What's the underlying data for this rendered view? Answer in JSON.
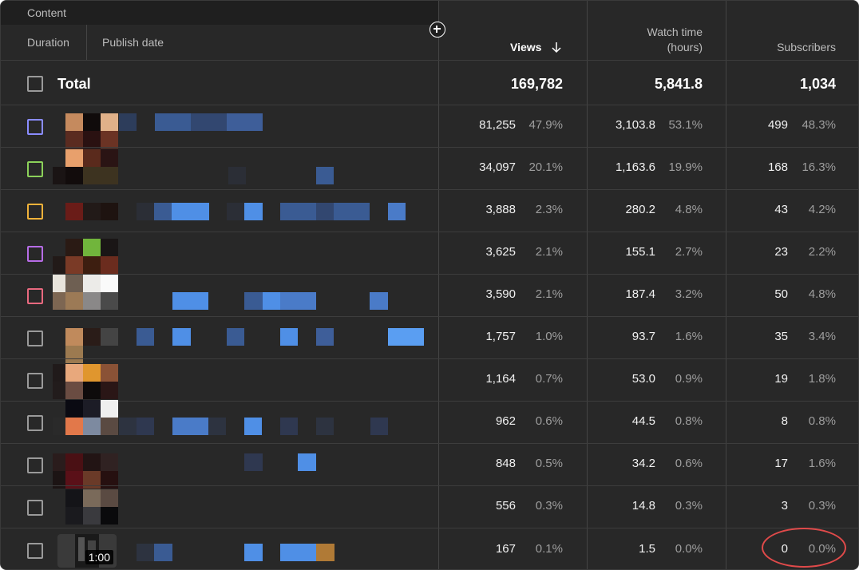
{
  "header": {
    "content_label": "Content",
    "duration_label": "Duration",
    "publish_date_label": "Publish date",
    "views_label": "Views",
    "watch_time_label_1": "Watch time",
    "watch_time_label_2": "(hours)",
    "subscribers_label": "Subscribers",
    "add_icon": "add-circle-icon",
    "sort_icon": "arrow-down-icon"
  },
  "total": {
    "label": "Total",
    "views": "169,782",
    "watch_time": "5,841.8",
    "subscribers": "1,034"
  },
  "rows": [
    {
      "checkbox_color": "#8a8cff",
      "views": "81,255",
      "views_pct": "47.9%",
      "watch": "3,103.8",
      "watch_pct": "53.1%",
      "subs": "499",
      "subs_pct": "48.3%"
    },
    {
      "checkbox_color": "#8bd15a",
      "views": "34,097",
      "views_pct": "20.1%",
      "watch": "1,163.6",
      "watch_pct": "19.9%",
      "subs": "168",
      "subs_pct": "16.3%"
    },
    {
      "checkbox_color": "#f0b23a",
      "views": "3,888",
      "views_pct": "2.3%",
      "watch": "280.2",
      "watch_pct": "4.8%",
      "subs": "43",
      "subs_pct": "4.2%"
    },
    {
      "checkbox_color": "#b66ce6",
      "views": "3,625",
      "views_pct": "2.1%",
      "watch": "155.1",
      "watch_pct": "2.7%",
      "subs": "23",
      "subs_pct": "2.2%"
    },
    {
      "checkbox_color": "#e8697f",
      "views": "3,590",
      "views_pct": "2.1%",
      "watch": "187.4",
      "watch_pct": "3.2%",
      "subs": "50",
      "subs_pct": "4.8%"
    },
    {
      "checkbox_color": "#9a9a9a",
      "views": "1,757",
      "views_pct": "1.0%",
      "watch": "93.7",
      "watch_pct": "1.6%",
      "subs": "35",
      "subs_pct": "3.4%"
    },
    {
      "checkbox_color": "#9a9a9a",
      "views": "1,164",
      "views_pct": "0.7%",
      "watch": "53.0",
      "watch_pct": "0.9%",
      "subs": "19",
      "subs_pct": "1.8%"
    },
    {
      "checkbox_color": "#9a9a9a",
      "views": "962",
      "views_pct": "0.6%",
      "watch": "44.5",
      "watch_pct": "0.8%",
      "subs": "8",
      "subs_pct": "0.8%"
    },
    {
      "checkbox_color": "#9a9a9a",
      "views": "848",
      "views_pct": "0.5%",
      "watch": "34.2",
      "watch_pct": "0.6%",
      "subs": "17",
      "subs_pct": "1.6%"
    },
    {
      "checkbox_color": "#9a9a9a",
      "views": "556",
      "views_pct": "0.3%",
      "watch": "14.8",
      "watch_pct": "0.3%",
      "subs": "3",
      "subs_pct": "0.3%"
    },
    {
      "checkbox_color": "#9a9a9a",
      "views": "167",
      "views_pct": "0.1%",
      "watch": "1.5",
      "watch_pct": "0.0%",
      "subs": "0",
      "subs_pct": "0.0%"
    }
  ],
  "last_row_thumbnail": {
    "duration": "1:00"
  },
  "highlight_color": "#e04a4a"
}
